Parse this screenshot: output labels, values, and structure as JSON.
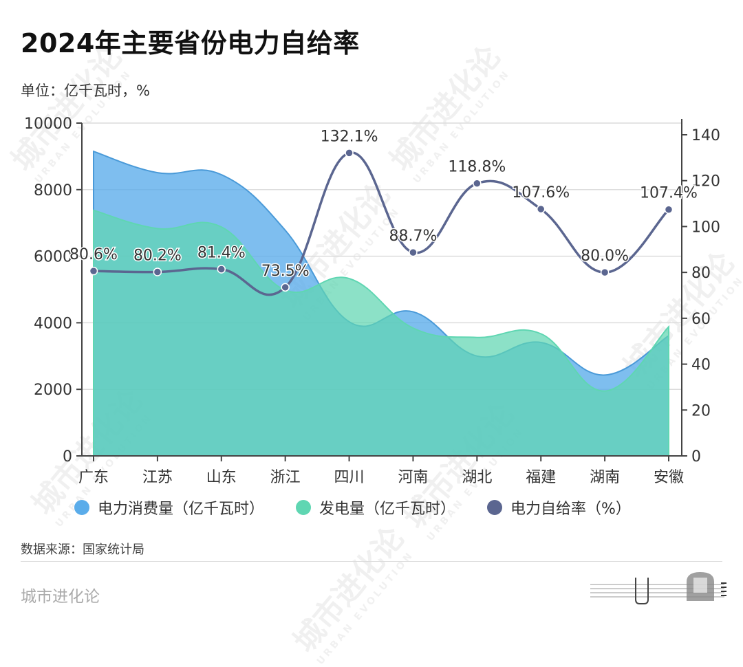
{
  "header": {
    "title": "2024年主要省份电力自给率",
    "unit": "单位：亿千瓦时，%"
  },
  "legend": [
    {
      "label": "电力消费量（亿千瓦时）",
      "color": "#5aacea"
    },
    {
      "label": "发电量（亿千瓦时）",
      "color": "#5fd6b2"
    },
    {
      "label": "电力自给率（%）",
      "color": "#5b6690"
    }
  ],
  "footer": {
    "source": "数据来源：国家统计局",
    "brand": "城市进化论"
  },
  "watermark": {
    "text": "城市进化论",
    "sub": "URBAN EVOLUTION"
  },
  "chart_data": {
    "type": "area",
    "title": "2024年主要省份电力自给率",
    "subtitle": "单位：亿千瓦时，%",
    "categories": [
      "广东",
      "江苏",
      "山东",
      "浙江",
      "四川",
      "河南",
      "湖北",
      "福建",
      "湖南",
      "安徽"
    ],
    "series": [
      {
        "name": "电力消费量（亿千瓦时）",
        "type": "area",
        "axis": "left",
        "color": "#5aacea",
        "values": [
          9150,
          8510,
          8450,
          6780,
          4030,
          4330,
          3000,
          3410,
          2430,
          3610
        ]
      },
      {
        "name": "发电量（亿千瓦时）",
        "type": "area",
        "axis": "left",
        "color": "#5fd6b2",
        "values": [
          7380,
          6830,
          6880,
          4980,
          5330,
          3840,
          3560,
          3670,
          1950,
          3880
        ]
      },
      {
        "name": "电力自给率（%）",
        "type": "line",
        "axis": "right",
        "color": "#5b6690",
        "values": [
          80.6,
          80.2,
          81.4,
          73.5,
          132.1,
          88.7,
          118.8,
          107.6,
          80.0,
          107.4
        ],
        "labels": [
          "80.6%",
          "80.2%",
          "81.4%",
          "73.5%",
          "132.1%",
          "88.7%",
          "118.8%",
          "107.6%",
          "80.0%",
          "107.4%"
        ]
      }
    ],
    "left_axis": {
      "ticks": [
        0,
        2000,
        4000,
        6000,
        8000,
        10000
      ],
      "range": [
        0,
        10000
      ]
    },
    "right_axis": {
      "ticks": [
        0,
        20,
        40,
        60,
        80,
        100,
        120,
        140
      ],
      "range": [
        0,
        140
      ]
    },
    "grid": true,
    "legend_position": "bottom"
  }
}
